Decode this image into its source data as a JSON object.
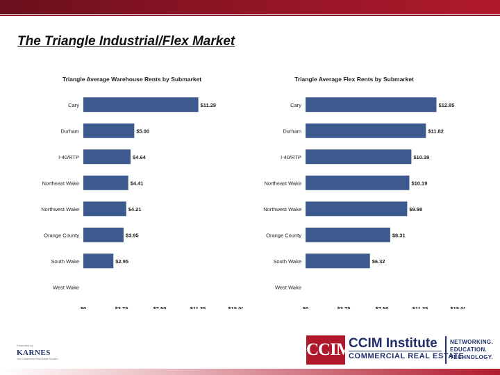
{
  "slide": {
    "title": "The Triangle Industrial/Flex Market"
  },
  "chart_data": [
    {
      "type": "bar",
      "orientation": "horizontal",
      "title": "Triangle Average Warehouse Rents by Submarket",
      "categories": [
        "Cary",
        "Durham",
        "I-40/RTP",
        "Northeast Wake",
        "Northwest Wake",
        "Orange County",
        "South Wake",
        "West Wake"
      ],
      "values": [
        11.29,
        5.0,
        4.64,
        4.41,
        4.21,
        3.95,
        2.95,
        null
      ],
      "value_labels": [
        "$11.29",
        "$5.00",
        "$4.64",
        "$4.41",
        "$4.21",
        "$3.95",
        "$2.95",
        ""
      ],
      "xticks": [
        0,
        3.75,
        7.5,
        11.25,
        15
      ],
      "xtick_labels": [
        "$0",
        "$3.75",
        "$7.50",
        "$11.25",
        "$15.00"
      ],
      "xlim": [
        0,
        15
      ],
      "grid": false,
      "bar_color": "#3d5a8e"
    },
    {
      "type": "bar",
      "orientation": "horizontal",
      "title": "Triangle Average Flex Rents by Submarket",
      "categories": [
        "Cary",
        "Durham",
        "I-40/RTP",
        "Northeast Wake",
        "Northwest Wake",
        "Orange County",
        "South Wake",
        "West Wake"
      ],
      "values": [
        12.85,
        11.82,
        10.39,
        10.19,
        9.98,
        8.31,
        6.32,
        null
      ],
      "value_labels": [
        "$12.85",
        "$11.82",
        "$10.39",
        "$10.19",
        "$9.98",
        "$8.31",
        "$6.32",
        ""
      ],
      "xticks": [
        0,
        3.75,
        7.5,
        11.25,
        15
      ],
      "xtick_labels": [
        "$0",
        "$3.75",
        "$7.50",
        "$11.25",
        "$15.00"
      ],
      "xlim": [
        0,
        15
      ],
      "grid": false,
      "bar_color": "#3d5a8e"
    }
  ],
  "footer": {
    "karnes_small": "Presented by",
    "karnes_brand": "KARNES",
    "karnes_tagline": "Your Commercial Real Estate Solution",
    "ccim_logo": "CCIM",
    "ccim_institute": "CCIM Institute",
    "ccim_subtitle": "COMMERCIAL REAL ESTATE",
    "tagline": [
      "NETWORKING.",
      "EDUCATION.",
      "TECHNOLOGY."
    ]
  },
  "colors": {
    "accent": "#8a1424",
    "brand_navy": "#1f2f6b"
  }
}
